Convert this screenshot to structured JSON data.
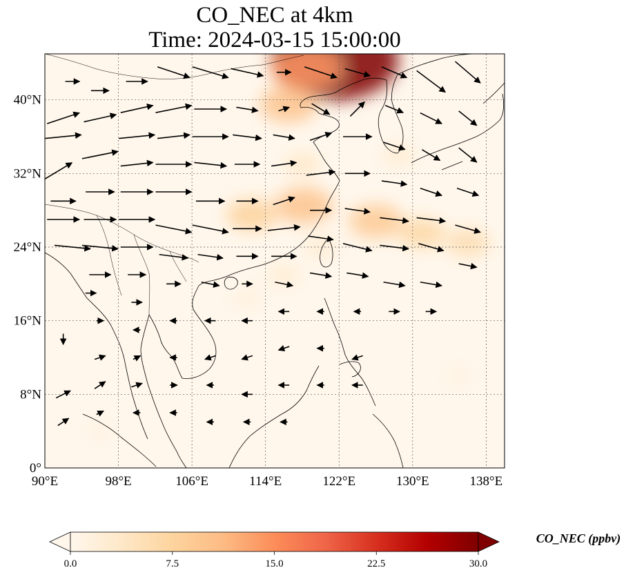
{
  "title": {
    "line1": "CO_NEC at 4km",
    "line2": "Time: 2024-03-15 15:00:00"
  },
  "map": {
    "projection": "PlateCarree",
    "extent": {
      "lon": [
        90,
        140
      ],
      "lat": [
        0,
        45
      ]
    },
    "gridlines": true,
    "x_ticks": [
      {
        "value": 90,
        "label": "90°E"
      },
      {
        "value": 98,
        "label": "98°E"
      },
      {
        "value": 106,
        "label": "106°E"
      },
      {
        "value": 114,
        "label": "114°E"
      },
      {
        "value": 122,
        "label": "122°E"
      },
      {
        "value": 130,
        "label": "130°E"
      },
      {
        "value": 138,
        "label": "138°E"
      }
    ],
    "y_ticks": [
      {
        "value": 0,
        "label": "0°"
      },
      {
        "value": 8,
        "label": "8°N"
      },
      {
        "value": 16,
        "label": "16°N"
      },
      {
        "value": 24,
        "label": "24°N"
      },
      {
        "value": 32,
        "label": "32°N"
      },
      {
        "value": 40,
        "label": "40°N"
      }
    ]
  },
  "colorbar": {
    "label": "CO_NEC (ppbv)",
    "range": [
      0,
      30
    ],
    "extend": "both",
    "colormap": "OrRd",
    "colors": [
      "#fff7ec",
      "#fee8c8",
      "#fdd49e",
      "#fdbb84",
      "#fc8d59",
      "#ef6548",
      "#d7301f",
      "#b30000",
      "#7f0000"
    ],
    "ticks": [
      {
        "value": 0,
        "label": "0.0"
      },
      {
        "value": 7.5,
        "label": "7.5"
      },
      {
        "value": 15,
        "label": "15.0"
      },
      {
        "value": 22.5,
        "label": "22.5"
      },
      {
        "value": 30,
        "label": "30.0"
      }
    ]
  },
  "concentration_hotspots": [
    {
      "lon": 121.5,
      "lat": 44.3,
      "ppbv": 30
    },
    {
      "lon": 118.5,
      "lat": 43.5,
      "ppbv": 14
    },
    {
      "lon": 116.5,
      "lat": 39.5,
      "ppbv": 10
    },
    {
      "lon": 118.2,
      "lat": 28.5,
      "ppbv": 10
    },
    {
      "lon": 112.5,
      "lat": 27.5,
      "ppbv": 8
    },
    {
      "lon": 126.0,
      "lat": 26.8,
      "ppbv": 9
    },
    {
      "lon": 131.0,
      "lat": 25.5,
      "ppbv": 7
    },
    {
      "lon": 136.0,
      "lat": 24.5,
      "ppbv": 6
    },
    {
      "lon": 118.0,
      "lat": 33.0,
      "ppbv": 4
    },
    {
      "lon": 116.0,
      "lat": 21.0,
      "ppbv": 3
    },
    {
      "lon": 112.0,
      "lat": 18.5,
      "ppbv": 2
    },
    {
      "lon": 120.0,
      "lat": 24.0,
      "ppbv": 3
    },
    {
      "lon": 128.5,
      "lat": 34.0,
      "ppbv": 3
    },
    {
      "lon": 96.0,
      "lat": 4.0,
      "ppbv": 1.5
    },
    {
      "lon": 135.0,
      "lat": 10.0,
      "ppbv": 1.5
    }
  ],
  "wind_vectors": {
    "description": "wind at 4km; u, v components",
    "vectors": [
      {
        "lon": 91,
        "lat": 32,
        "u": 10,
        "v": 6
      },
      {
        "lon": 92,
        "lat": 36,
        "u": 10,
        "v": 1
      },
      {
        "lon": 92,
        "lat": 38,
        "u": 9,
        "v": 3
      },
      {
        "lon": 93,
        "lat": 42,
        "u": 4,
        "v": 0
      },
      {
        "lon": 92,
        "lat": 29,
        "u": 7,
        "v": 0
      },
      {
        "lon": 92,
        "lat": 27,
        "u": 9,
        "v": 0
      },
      {
        "lon": 93,
        "lat": 24,
        "u": 10,
        "v": -1
      },
      {
        "lon": 96,
        "lat": 41,
        "u": 5,
        "v": 0
      },
      {
        "lon": 96,
        "lat": 38,
        "u": 9,
        "v": 2
      },
      {
        "lon": 96,
        "lat": 34,
        "u": 10,
        "v": 2
      },
      {
        "lon": 96,
        "lat": 30,
        "u": 8,
        "v": 0
      },
      {
        "lon": 96,
        "lat": 27,
        "u": 9,
        "v": 0
      },
      {
        "lon": 96,
        "lat": 24,
        "u": 10,
        "v": -1
      },
      {
        "lon": 96,
        "lat": 21,
        "u": 6,
        "v": 0
      },
      {
        "lon": 95,
        "lat": 19,
        "u": 3,
        "v": 0
      },
      {
        "lon": 100,
        "lat": 42,
        "u": 6,
        "v": 0
      },
      {
        "lon": 100,
        "lat": 39,
        "u": 9,
        "v": 2
      },
      {
        "lon": 100,
        "lat": 36,
        "u": 10,
        "v": 1
      },
      {
        "lon": 100,
        "lat": 33,
        "u": 9,
        "v": 1
      },
      {
        "lon": 100,
        "lat": 30,
        "u": 9,
        "v": 0
      },
      {
        "lon": 100,
        "lat": 27,
        "u": 10,
        "v": 0
      },
      {
        "lon": 100,
        "lat": 24,
        "u": 9,
        "v": 0
      },
      {
        "lon": 100,
        "lat": 21,
        "u": 5,
        "v": 0
      },
      {
        "lon": 100,
        "lat": 18,
        "u": 3,
        "v": 0
      },
      {
        "lon": 104,
        "lat": 43,
        "u": 9,
        "v": -3
      },
      {
        "lon": 104,
        "lat": 39,
        "u": 10,
        "v": 2
      },
      {
        "lon": 104,
        "lat": 36,
        "u": 9,
        "v": 1
      },
      {
        "lon": 104,
        "lat": 33,
        "u": 10,
        "v": 0
      },
      {
        "lon": 104,
        "lat": 30,
        "u": 10,
        "v": 0
      },
      {
        "lon": 104,
        "lat": 26,
        "u": 10,
        "v": -2
      },
      {
        "lon": 104,
        "lat": 23,
        "u": 8,
        "v": -1
      },
      {
        "lon": 104,
        "lat": 20,
        "u": 4,
        "v": 0
      },
      {
        "lon": 108,
        "lat": 43,
        "u": 10,
        "v": -3
      },
      {
        "lon": 108,
        "lat": 39,
        "u": 9,
        "v": 0
      },
      {
        "lon": 108,
        "lat": 36,
        "u": 10,
        "v": 0
      },
      {
        "lon": 108,
        "lat": 33,
        "u": 9,
        "v": -1
      },
      {
        "lon": 108,
        "lat": 29,
        "u": 8,
        "v": 0
      },
      {
        "lon": 108,
        "lat": 26,
        "u": 10,
        "v": -2
      },
      {
        "lon": 108,
        "lat": 23,
        "u": 7,
        "v": -1
      },
      {
        "lon": 108,
        "lat": 20,
        "u": 5,
        "v": -1
      },
      {
        "lon": 112,
        "lat": 43,
        "u": 9,
        "v": -2
      },
      {
        "lon": 112,
        "lat": 39,
        "u": 6,
        "v": -1
      },
      {
        "lon": 112,
        "lat": 36,
        "u": 8,
        "v": -1
      },
      {
        "lon": 112,
        "lat": 33,
        "u": 7,
        "v": 0
      },
      {
        "lon": 112,
        "lat": 29,
        "u": 6,
        "v": 0
      },
      {
        "lon": 112,
        "lat": 26,
        "u": 8,
        "v": 0
      },
      {
        "lon": 112,
        "lat": 23,
        "u": 6,
        "v": 0
      },
      {
        "lon": 112,
        "lat": 20,
        "u": 3,
        "v": 0
      },
      {
        "lon": 116,
        "lat": 43,
        "u": 4,
        "v": 0
      },
      {
        "lon": 116,
        "lat": 39,
        "u": 3,
        "v": 1
      },
      {
        "lon": 116,
        "lat": 36,
        "u": 6,
        "v": -1
      },
      {
        "lon": 116,
        "lat": 33,
        "u": 7,
        "v": 1
      },
      {
        "lon": 116,
        "lat": 29,
        "u": 6,
        "v": 2
      },
      {
        "lon": 116,
        "lat": 26,
        "u": 9,
        "v": 1
      },
      {
        "lon": 116,
        "lat": 23,
        "u": 7,
        "v": 0
      },
      {
        "lon": 116,
        "lat": 20,
        "u": 5,
        "v": -1
      },
      {
        "lon": 120,
        "lat": 43,
        "u": 9,
        "v": -3
      },
      {
        "lon": 120,
        "lat": 39,
        "u": 5,
        "v": -3
      },
      {
        "lon": 120,
        "lat": 36,
        "u": 6,
        "v": 2
      },
      {
        "lon": 120,
        "lat": 32,
        "u": 8,
        "v": 1
      },
      {
        "lon": 120,
        "lat": 28,
        "u": 6,
        "v": 0
      },
      {
        "lon": 120,
        "lat": 25,
        "u": 7,
        "v": -1
      },
      {
        "lon": 120,
        "lat": 21,
        "u": 6,
        "v": -1
      },
      {
        "lon": 124,
        "lat": 43,
        "u": 7,
        "v": -2
      },
      {
        "lon": 124,
        "lat": 39,
        "u": 4,
        "v": 4
      },
      {
        "lon": 124,
        "lat": 36,
        "u": 8,
        "v": 0
      },
      {
        "lon": 124,
        "lat": 32,
        "u": 7,
        "v": 0
      },
      {
        "lon": 124,
        "lat": 28,
        "u": 7,
        "v": -1
      },
      {
        "lon": 124,
        "lat": 24,
        "u": 8,
        "v": -2
      },
      {
        "lon": 124,
        "lat": 21,
        "u": 6,
        "v": -1
      },
      {
        "lon": 128,
        "lat": 43,
        "u": 7,
        "v": -3
      },
      {
        "lon": 128,
        "lat": 39,
        "u": 5,
        "v": -2
      },
      {
        "lon": 128,
        "lat": 35,
        "u": 6,
        "v": -2
      },
      {
        "lon": 128,
        "lat": 31,
        "u": 7,
        "v": -1
      },
      {
        "lon": 128,
        "lat": 27,
        "u": 8,
        "v": -1
      },
      {
        "lon": 128,
        "lat": 24,
        "u": 8,
        "v": -1
      },
      {
        "lon": 128,
        "lat": 20,
        "u": 6,
        "v": -1
      },
      {
        "lon": 132,
        "lat": 42,
        "u": 8,
        "v": -6
      },
      {
        "lon": 132,
        "lat": 38,
        "u": 6,
        "v": -3
      },
      {
        "lon": 132,
        "lat": 34,
        "u": 5,
        "v": -3
      },
      {
        "lon": 132,
        "lat": 30,
        "u": 6,
        "v": -2
      },
      {
        "lon": 132,
        "lat": 27,
        "u": 8,
        "v": -1
      },
      {
        "lon": 132,
        "lat": 24,
        "u": 7,
        "v": -2
      },
      {
        "lon": 132,
        "lat": 20,
        "u": 6,
        "v": -1
      },
      {
        "lon": 136,
        "lat": 43,
        "u": 7,
        "v": -6
      },
      {
        "lon": 136,
        "lat": 38,
        "u": 5,
        "v": -4
      },
      {
        "lon": 136,
        "lat": 34,
        "u": 5,
        "v": -4
      },
      {
        "lon": 136,
        "lat": 30,
        "u": 6,
        "v": -2
      },
      {
        "lon": 136,
        "lat": 26,
        "u": 7,
        "v": -2
      },
      {
        "lon": 136,
        "lat": 22,
        "u": 5,
        "v": -1
      },
      {
        "lon": 92,
        "lat": 14,
        "u": 0,
        "v": -3
      },
      {
        "lon": 92,
        "lat": 8,
        "u": 4,
        "v": 2
      },
      {
        "lon": 92,
        "lat": 5,
        "u": 3,
        "v": 2
      },
      {
        "lon": 96,
        "lat": 12,
        "u": 3,
        "v": 1
      },
      {
        "lon": 96,
        "lat": 9,
        "u": 3,
        "v": 2
      },
      {
        "lon": 96,
        "lat": 6,
        "u": 2,
        "v": 1
      },
      {
        "lon": 96,
        "lat": 16,
        "u": 2,
        "v": 0
      },
      {
        "lon": 100,
        "lat": 15,
        "u": -2,
        "v": 0
      },
      {
        "lon": 100,
        "lat": 12,
        "u": 2,
        "v": 1
      },
      {
        "lon": 100,
        "lat": 9,
        "u": 3,
        "v": 1
      },
      {
        "lon": 100,
        "lat": 6,
        "u": -2,
        "v": 0
      },
      {
        "lon": 104,
        "lat": 16,
        "u": -2,
        "v": 0
      },
      {
        "lon": 104,
        "lat": 12,
        "u": -2,
        "v": 0
      },
      {
        "lon": 104,
        "lat": 9,
        "u": 2,
        "v": 0
      },
      {
        "lon": 104,
        "lat": 6,
        "u": -2,
        "v": 0
      },
      {
        "lon": 108,
        "lat": 16,
        "u": -3,
        "v": 0
      },
      {
        "lon": 108,
        "lat": 12,
        "u": -3,
        "v": -1
      },
      {
        "lon": 108,
        "lat": 9,
        "u": -2,
        "v": 0
      },
      {
        "lon": 108,
        "lat": 5,
        "u": -2,
        "v": 0
      },
      {
        "lon": 112,
        "lat": 16,
        "u": -3,
        "v": 0
      },
      {
        "lon": 112,
        "lat": 12,
        "u": -3,
        "v": -1
      },
      {
        "lon": 112,
        "lat": 8,
        "u": -3,
        "v": 0
      },
      {
        "lon": 112,
        "lat": 5,
        "u": -2,
        "v": 0
      },
      {
        "lon": 116,
        "lat": 17,
        "u": -3,
        "v": 0
      },
      {
        "lon": 116,
        "lat": 13,
        "u": -3,
        "v": -1
      },
      {
        "lon": 116,
        "lat": 9,
        "u": -3,
        "v": 0
      },
      {
        "lon": 116,
        "lat": 5,
        "u": -2,
        "v": 0
      },
      {
        "lon": 120,
        "lat": 17,
        "u": -2,
        "v": 0
      },
      {
        "lon": 120,
        "lat": 13,
        "u": -2,
        "v": 0
      },
      {
        "lon": 120,
        "lat": 9,
        "u": -2,
        "v": 0
      },
      {
        "lon": 124,
        "lat": 17,
        "u": -2,
        "v": 0
      },
      {
        "lon": 124,
        "lat": 12,
        "u": -3,
        "v": -1
      },
      {
        "lon": 124,
        "lat": 9,
        "u": -3,
        "v": 0
      },
      {
        "lon": 128,
        "lat": 17,
        "u": 3,
        "v": 0
      },
      {
        "lon": 132,
        "lat": 17,
        "u": 3,
        "v": 0
      }
    ]
  }
}
